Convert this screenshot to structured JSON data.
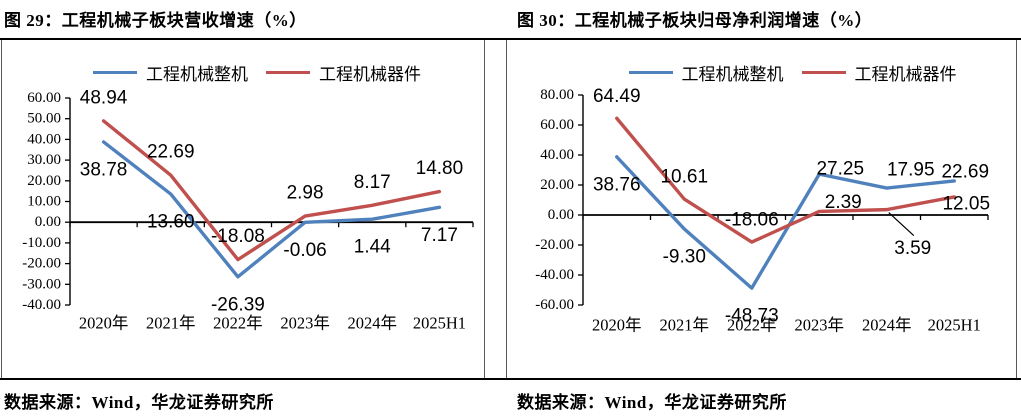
{
  "chart_data": [
    {
      "type": "line",
      "title": "图 29：工程机械子板块营收增速（%）",
      "source": "数据来源：Wind，华龙证券研究所",
      "categories": [
        "2020年",
        "2021年",
        "2022年",
        "2023年",
        "2024年",
        "2025H1"
      ],
      "series": [
        {
          "name": "工程机械整机",
          "color": "#4F81BD",
          "values": [
            38.78,
            13.6,
            -26.39,
            -0.06,
            1.44,
            7.17
          ]
        },
        {
          "name": "工程机械器件",
          "color": "#C0504D",
          "values": [
            48.94,
            22.69,
            -18.08,
            2.98,
            8.17,
            14.8
          ]
        }
      ],
      "ylim": [
        -40,
        60
      ],
      "ytick_step": 10,
      "y_tick_format": "0.00",
      "legend_position": "top",
      "grid": false,
      "data_labels": true
    },
    {
      "type": "line",
      "title": "图 30：工程机械子板块归母净利润增速（%）",
      "source": "数据来源：Wind，华龙证券研究所",
      "categories": [
        "2020年",
        "2021年",
        "2022年",
        "2023年",
        "2024年",
        "2025H1"
      ],
      "series": [
        {
          "name": "工程机械整机",
          "color": "#4F81BD",
          "values": [
            38.76,
            -9.3,
            -48.73,
            27.25,
            17.95,
            22.69
          ]
        },
        {
          "name": "工程机械器件",
          "color": "#C0504D",
          "values": [
            64.49,
            10.61,
            -18.06,
            2.39,
            3.59,
            12.05
          ]
        }
      ],
      "ylim": [
        -60,
        80
      ],
      "ytick_step": 20,
      "y_tick_format": "0.00",
      "legend_position": "top",
      "grid": false,
      "data_labels": true
    }
  ]
}
